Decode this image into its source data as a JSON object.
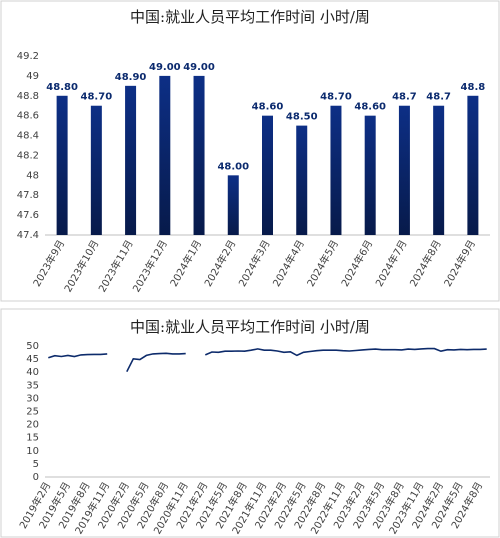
{
  "chart_data": [
    {
      "type": "bar",
      "title": "中国:就业人员平均工作时间 小时/周",
      "categories": [
        "2023年9月",
        "2023年10月",
        "2023年11月",
        "2023年12月",
        "2024年1月",
        "2024年2月",
        "2024年3月",
        "2024年4月",
        "2024年5月",
        "2024年6月",
        "2024年7月",
        "2024年8月",
        "2024年9月"
      ],
      "values": [
        48.8,
        48.7,
        48.9,
        49.0,
        49.0,
        48.0,
        48.6,
        48.5,
        48.7,
        48.6,
        48.7,
        48.7,
        48.8
      ],
      "value_labels": [
        "48.80",
        "48.70",
        "48.90",
        "49.00",
        "49.00",
        "48.00",
        "48.60",
        "48.50",
        "48.70",
        "48.60",
        "48.7",
        "48.7",
        "48.8"
      ],
      "color": "#0d2f86",
      "ylim": [
        47.4,
        49.2
      ],
      "yticks": [
        47.4,
        47.6,
        47.8,
        48,
        48.2,
        48.4,
        48.6,
        48.8,
        49,
        49.2
      ],
      "grid": false
    },
    {
      "type": "line",
      "title": "中国:就业人员平均工作时间 小时/周",
      "categories": [
        "2019年2月",
        null,
        null,
        "2019年5月",
        null,
        null,
        "2019年8月",
        null,
        null,
        "2019年11月",
        null,
        null,
        "2020年2月",
        null,
        null,
        "2020年5月",
        null,
        null,
        "2020年8月",
        null,
        null,
        "2020年11月",
        null,
        null,
        "2021年2月",
        null,
        null,
        "2021年5月",
        null,
        null,
        "2021年8月",
        null,
        null,
        "2021年11月",
        null,
        null,
        "2022年2月",
        null,
        null,
        "2022年5月",
        null,
        null,
        "2022年8月",
        null,
        null,
        "2022年11月",
        null,
        null,
        "2023年2月",
        null,
        null,
        "2023年5月",
        null,
        null,
        "2023年8月",
        null,
        null,
        "2023年11月",
        null,
        null,
        "2024年2月",
        null,
        null,
        "2024年5月",
        null,
        null,
        "2024年8月",
        null
      ],
      "values": [
        45.5,
        46.3,
        46.0,
        46.4,
        46.0,
        46.6,
        46.7,
        46.8,
        46.8,
        47.0,
        null,
        null,
        40.2,
        45.1,
        44.8,
        46.4,
        47.0,
        47.1,
        47.2,
        47.0,
        47.0,
        47.1,
        null,
        null,
        46.6,
        47.7,
        47.6,
        48.0,
        48.0,
        48.1,
        48.0,
        48.4,
        48.9,
        48.4,
        48.4,
        48.1,
        47.6,
        47.8,
        46.4,
        47.6,
        47.9,
        48.2,
        48.4,
        48.4,
        48.4,
        48.2,
        48.1,
        48.3,
        48.5,
        48.7,
        48.8,
        48.6,
        48.6,
        48.6,
        48.5,
        48.8,
        48.7,
        48.9,
        49.0,
        49.0,
        48.0,
        48.6,
        48.5,
        48.7,
        48.6,
        48.7,
        48.7,
        48.8
      ],
      "color": "#0d2b6b",
      "ylim": [
        0,
        50
      ],
      "yticks": [
        0,
        5,
        10,
        15,
        20,
        25,
        30,
        35,
        40,
        45,
        50
      ],
      "grid": false
    }
  ]
}
